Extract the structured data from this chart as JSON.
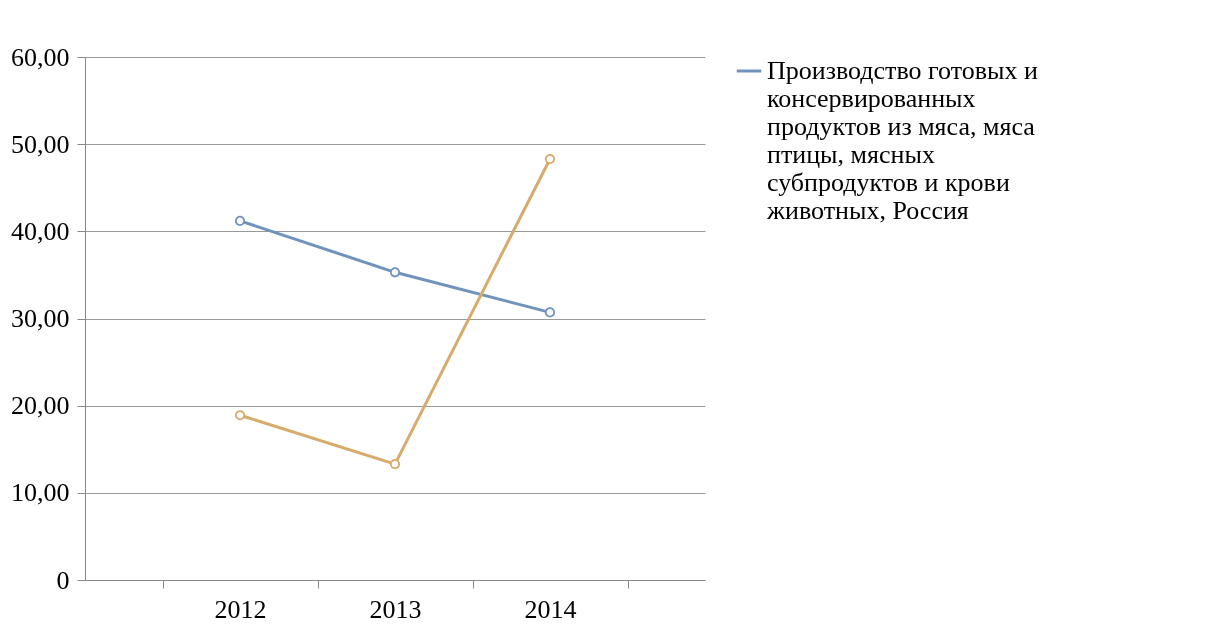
{
  "chart_data": {
    "type": "line",
    "categories": [
      "2012",
      "2013",
      "2014"
    ],
    "series": [
      {
        "name": "Производство готовых и консервированных продуктов из мяса, мяса птицы, мясных субпродуктов и крови животных, Россия",
        "color": "#7092bc",
        "values": [
          41.2,
          35.3,
          30.7
        ]
      },
      {
        "color": "#d6ab6c",
        "values": [
          18.9,
          13.3,
          48.3
        ]
      }
    ],
    "ylim": [
      0,
      60
    ],
    "yticks": [
      0,
      {
        "value": 10,
        "label": "10,00"
      },
      {
        "value": 20,
        "label": "20,00"
      },
      {
        "value": 30,
        "label": "30,00"
      },
      {
        "value": 40,
        "label": "40,00"
      },
      {
        "value": 50,
        "label": "50,00"
      },
      {
        "value": 60,
        "label": "60,00"
      }
    ],
    "grid": "y",
    "legend": "right",
    "marker": "circle",
    "line_style": "solid"
  }
}
